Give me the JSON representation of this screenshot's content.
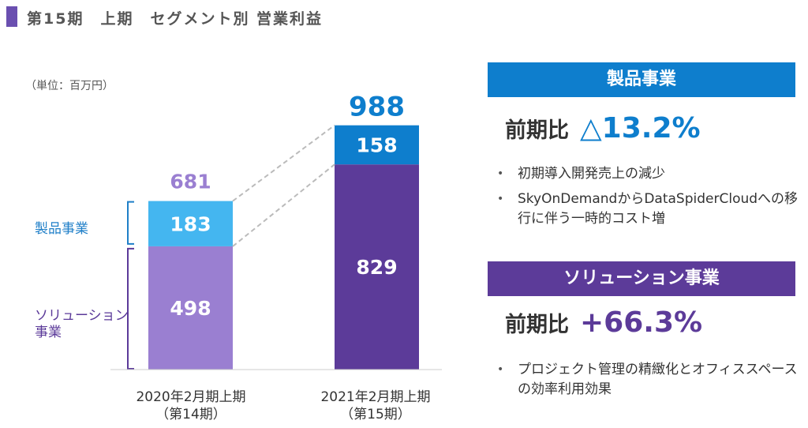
{
  "header": {
    "title": "第15期　上期　セグメント別 営業利益"
  },
  "unit_label": "（単位：百万円）",
  "chart_data": {
    "type": "bar",
    "stacked": true,
    "title": "第15期 上期 セグメント別 営業利益",
    "ylabel": "百万円",
    "categories": [
      {
        "line1": "2020年2月期上期",
        "line2": "（第14期）"
      },
      {
        "line1": "2021年2月期上期",
        "line2": "（第15期）"
      }
    ],
    "series": [
      {
        "name": "ソリューション事業",
        "values": [
          498,
          829
        ]
      },
      {
        "name": "製品事業",
        "values": [
          183,
          158
        ]
      }
    ],
    "totals": [
      681,
      988
    ],
    "ylim": [
      0,
      1100
    ],
    "legend_labels": {
      "product": "製品事業",
      "solution": [
        "ソリューション",
        "事業"
      ]
    }
  },
  "colors": {
    "sol_prev": "#9a7fd1",
    "prod_prev": "#44b6f0",
    "sol_curr": "#5c3b99",
    "prod_curr": "#0e7ecd",
    "total_prev": "#9a7fd1",
    "total_curr": "#0e7ecd",
    "bracket_prod": "#1f7fc8",
    "bracket_sol": "#5b3a99"
  },
  "product_panel": {
    "banner": "製品事業",
    "yoy_label": "前期比",
    "yoy_value": "△13.2%",
    "bullets": [
      "初期導入開発売上の減少",
      "SkyOnDemandからDataSpiderCloudへの移行に伴う一時的コスト増"
    ]
  },
  "solution_panel": {
    "banner": "ソリューション事業",
    "yoy_label": "前期比",
    "yoy_value": "+66.3%",
    "bullets": [
      "プロジェクト管理の精緻化とオフィススペースの効率利用効果"
    ]
  }
}
